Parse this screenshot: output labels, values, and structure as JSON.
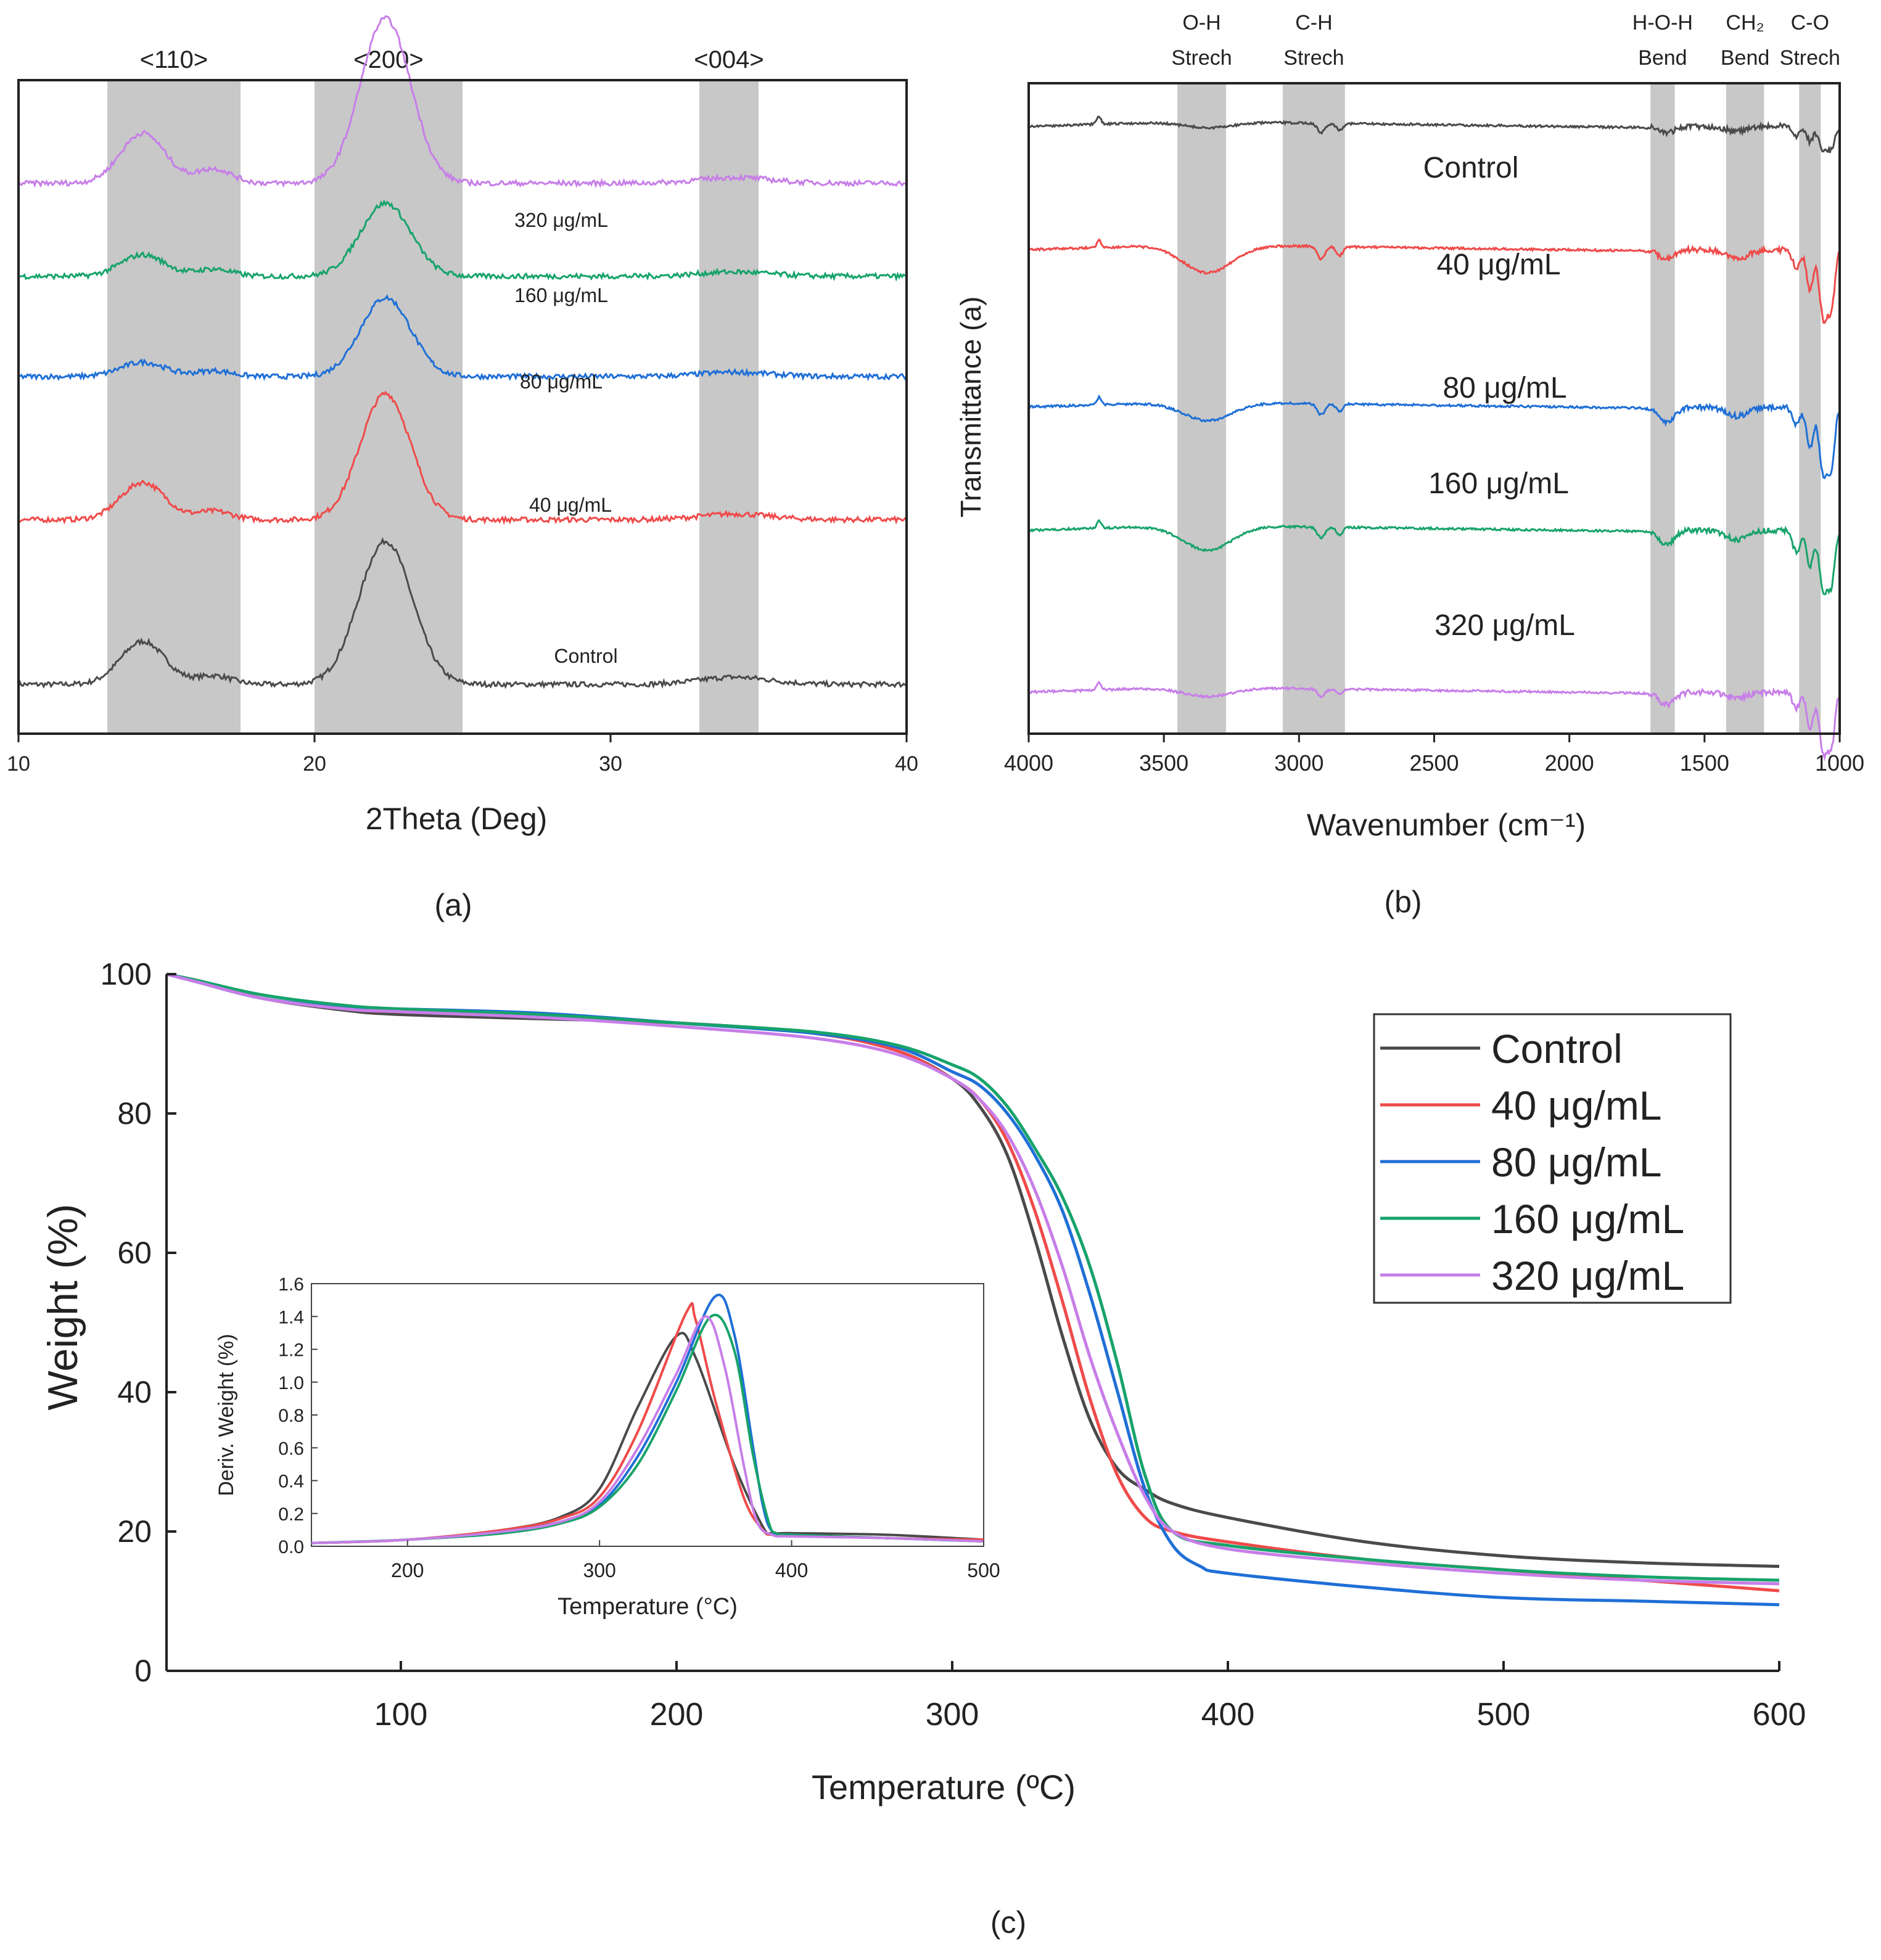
{
  "colors": {
    "control": "#4a4a4a",
    "c40": "#ef4a4a",
    "c80": "#1f6fd6",
    "c160": "#17a36b",
    "c320": "#c77ee8",
    "band": "#c8c8c8",
    "axis": "#222222"
  },
  "chart_data": [
    {
      "type": "line",
      "panel_label": "(a)",
      "xlabel": "2Theta (Deg)",
      "ylabel": "",
      "xlim": [
        10,
        40
      ],
      "xticks": [
        "10",
        "20",
        "30",
        "40"
      ],
      "bands": [
        {
          "label": "<110>",
          "from": 13,
          "to": 17.5
        },
        {
          "label": "<200>",
          "from": 20,
          "to": 25
        },
        {
          "label": "<004>",
          "from": 33,
          "to": 35
        }
      ],
      "series": [
        {
          "name": "Control",
          "label": "Control",
          "key": "control",
          "offset": 0,
          "peaks": [
            [
              14.2,
              30,
              0.75
            ],
            [
              16.6,
              6,
              0.6
            ],
            [
              22.4,
              100,
              0.9
            ],
            [
              34.2,
              5,
              1.2
            ]
          ]
        },
        {
          "name": "40 μg/mL",
          "label": "40  μg/mL",
          "key": "c40",
          "offset": 115,
          "peaks": [
            [
              14.2,
              26,
              0.75
            ],
            [
              16.6,
              6,
              0.6
            ],
            [
              22.4,
              88,
              0.85
            ],
            [
              34.2,
              4,
              1.2
            ]
          ]
        },
        {
          "name": "80 μg/mL",
          "label": "80  μg/mL",
          "key": "c80",
          "offset": 215,
          "peaks": [
            [
              14.2,
              10,
              0.75
            ],
            [
              16.6,
              4,
              0.6
            ],
            [
              22.4,
              55,
              0.85
            ],
            [
              34.2,
              3,
              1.2
            ]
          ]
        },
        {
          "name": "160 μg/mL",
          "label": "160  μg/mL",
          "key": "c160",
          "offset": 285,
          "peaks": [
            [
              14.2,
              15,
              0.75
            ],
            [
              16.6,
              5,
              0.6
            ],
            [
              22.4,
              51,
              0.85
            ],
            [
              34.2,
              3,
              1.2
            ]
          ]
        },
        {
          "name": "320 μg/mL",
          "label": "320  μg/mL",
          "key": "c320",
          "offset": 350,
          "peaks": [
            [
              14.2,
              35,
              0.75
            ],
            [
              16.6,
              10,
              0.6
            ],
            [
              22.4,
              115,
              0.85
            ],
            [
              34.2,
              4,
              1.2
            ]
          ]
        }
      ]
    },
    {
      "type": "line",
      "panel_label": "(b)",
      "xlabel": "Wavenumber (cm⁻¹)",
      "ylabel": "Transmittance (a)",
      "xlim": [
        4000,
        1000
      ],
      "xticks": [
        "4000",
        "3500",
        "3000",
        "2500",
        "2000",
        "1500",
        "1000"
      ],
      "bands": [
        {
          "label": "O-H",
          "label2": "Strech",
          "from": 3450,
          "to": 3270
        },
        {
          "label": "C-H",
          "label2": "Strech",
          "from": 3060,
          "to": 2830
        },
        {
          "label": "H-O-H",
          "label2": "Bend",
          "from": 1700,
          "to": 1610
        },
        {
          "label": "CH₂",
          "label2": "Bend",
          "from": 1420,
          "to": 1280
        },
        {
          "label": "C-O",
          "label2": "Strech",
          "from": 1150,
          "to": 1070
        }
      ],
      "series": [
        {
          "name": "Control",
          "label": "Control",
          "key": "control",
          "offset": 0,
          "depths": [
            10,
            15,
            10,
            8,
            15,
            40
          ]
        },
        {
          "name": "40 μg/mL",
          "label": "40 μg/mL",
          "key": "c40",
          "offset": 80,
          "depths": [
            45,
            20,
            15,
            15,
            30,
            110
          ]
        },
        {
          "name": "80 μg/mL",
          "label": "80 μg/mL",
          "key": "c80",
          "offset": 182,
          "depths": [
            30,
            18,
            25,
            15,
            30,
            110
          ]
        },
        {
          "name": "160 μg/mL",
          "label": "160 μg/mL",
          "key": "c160",
          "offset": 262,
          "depths": [
            40,
            18,
            22,
            15,
            35,
            100
          ]
        },
        {
          "name": "320 μg/mL",
          "label": "320 μg/mL",
          "key": "c320",
          "offset": 367,
          "depths": [
            15,
            12,
            20,
            10,
            25,
            100
          ]
        }
      ]
    },
    {
      "type": "line",
      "panel_label": "(c)",
      "xlabel": "Temperature (ºC)",
      "ylabel": "Weight (%)",
      "xlim": [
        15,
        600
      ],
      "ylim": [
        0,
        100
      ],
      "xticks": [
        "100",
        "200",
        "300",
        "400",
        "500",
        "600"
      ],
      "yticks": [
        "0",
        "20",
        "40",
        "60",
        "80",
        "100"
      ],
      "legend_position": "top-right",
      "series": [
        {
          "name": "Control",
          "key": "control",
          "x": [
            15,
            25,
            50,
            80,
            100,
            150,
            200,
            250,
            280,
            300,
            310,
            320,
            330,
            340,
            350,
            360,
            370,
            380,
            400,
            450,
            500,
            550,
            600
          ],
          "y": [
            100,
            99,
            96.5,
            94.8,
            94.2,
            93.6,
            93,
            91.5,
            89,
            85,
            81,
            74,
            62,
            48,
            36,
            29,
            26,
            24,
            22,
            18.5,
            16.5,
            15.5,
            15
          ]
        },
        {
          "name": "40 μg/mL",
          "key": "c40",
          "x": [
            15,
            25,
            50,
            80,
            100,
            150,
            200,
            250,
            280,
            300,
            310,
            320,
            330,
            340,
            350,
            360,
            370,
            380,
            400,
            450,
            500,
            550,
            600
          ],
          "y": [
            100,
            99,
            96.5,
            95,
            94.6,
            94,
            93,
            91.5,
            89,
            85,
            82,
            76,
            66,
            53,
            39,
            28,
            22,
            20,
            18.5,
            16,
            14.5,
            13,
            11.5
          ]
        },
        {
          "name": "80 μg/mL",
          "key": "c80",
          "x": [
            15,
            25,
            50,
            80,
            100,
            150,
            200,
            250,
            280,
            300,
            310,
            320,
            330,
            340,
            350,
            360,
            370,
            380,
            390,
            400,
            450,
            500,
            550,
            600
          ],
          "y": [
            100,
            99,
            96.5,
            95.2,
            95,
            94.4,
            93,
            91.5,
            89.5,
            86,
            84,
            80,
            74,
            66,
            54,
            40,
            26,
            18,
            15,
            14,
            12,
            10.5,
            10,
            9.5
          ]
        },
        {
          "name": "160 μg/mL",
          "key": "c160",
          "x": [
            15,
            25,
            50,
            80,
            100,
            150,
            200,
            250,
            280,
            300,
            310,
            320,
            330,
            340,
            350,
            360,
            370,
            380,
            400,
            450,
            500,
            550,
            600
          ],
          "y": [
            100,
            99.2,
            97,
            95.5,
            95,
            94.2,
            93,
            91.7,
            89.8,
            87,
            85,
            81,
            75,
            68,
            58,
            44,
            28,
            20,
            18,
            16,
            14.5,
            13.5,
            13
          ]
        },
        {
          "name": "320 μg/mL",
          "key": "c320",
          "x": [
            15,
            25,
            50,
            80,
            100,
            150,
            200,
            250,
            280,
            300,
            310,
            320,
            330,
            340,
            350,
            360,
            370,
            380,
            400,
            450,
            500,
            550,
            600
          ],
          "y": [
            100,
            99,
            96.5,
            95,
            94.6,
            93.8,
            92.5,
            90.8,
            88.5,
            85,
            82,
            77,
            69,
            58,
            45,
            34,
            25,
            20,
            17.5,
            15.5,
            14,
            13,
            12.5
          ]
        }
      ],
      "inset": {
        "type": "line",
        "xlabel": "Temperature (°C)",
        "ylabel": "Deriv. Weight (%)",
        "xlim": [
          150,
          500
        ],
        "ylim": [
          0,
          1.6
        ],
        "xticks": [
          "200",
          "300",
          "400",
          "500"
        ],
        "yticks": [
          "0.0",
          "0.2",
          "0.4",
          "0.6",
          "0.8",
          "1.0",
          "1.2",
          "1.4",
          "1.6"
        ],
        "series": [
          {
            "name": "Control",
            "key": "control",
            "x": [
              150,
              200,
              250,
              280,
              300,
              320,
              340,
              350,
              370,
              385,
              390,
              400,
              450,
              500
            ],
            "y": [
              0.02,
              0.04,
              0.1,
              0.18,
              0.35,
              0.85,
              1.28,
              1.15,
              0.5,
              0.12,
              0.08,
              0.08,
              0.07,
              0.04
            ]
          },
          {
            "name": "40 μg/mL",
            "key": "c40",
            "x": [
              150,
              200,
              250,
              280,
              300,
              320,
              345,
              350,
              360,
              375,
              385,
              390,
              400,
              450,
              500
            ],
            "y": [
              0.02,
              0.04,
              0.1,
              0.17,
              0.3,
              0.7,
              1.42,
              1.38,
              0.9,
              0.3,
              0.1,
              0.07,
              0.07,
              0.05,
              0.04
            ]
          },
          {
            "name": "80 μg/mL",
            "key": "c80",
            "x": [
              150,
              200,
              250,
              280,
              300,
              320,
              340,
              360,
              370,
              380,
              385,
              390,
              400,
              450,
              500
            ],
            "y": [
              0.02,
              0.04,
              0.09,
              0.15,
              0.25,
              0.55,
              1.0,
              1.52,
              1.3,
              0.6,
              0.25,
              0.09,
              0.07,
              0.05,
              0.03
            ]
          },
          {
            "name": "160 μg/mL",
            "key": "c160",
            "x": [
              150,
              200,
              250,
              280,
              300,
              320,
              340,
              358,
              370,
              380,
              388,
              392,
              400,
              450,
              500
            ],
            "y": [
              0.02,
              0.04,
              0.08,
              0.14,
              0.24,
              0.5,
              0.95,
              1.4,
              1.2,
              0.55,
              0.15,
              0.08,
              0.07,
              0.05,
              0.03
            ]
          },
          {
            "name": "320 μg/mL",
            "key": "c320",
            "x": [
              150,
              200,
              250,
              280,
              300,
              320,
              340,
              355,
              365,
              375,
              382,
              390,
              400,
              450,
              500
            ],
            "y": [
              0.02,
              0.04,
              0.09,
              0.15,
              0.27,
              0.6,
              1.05,
              1.4,
              1.1,
              0.5,
              0.15,
              0.07,
              0.06,
              0.05,
              0.03
            ]
          }
        ]
      }
    }
  ]
}
